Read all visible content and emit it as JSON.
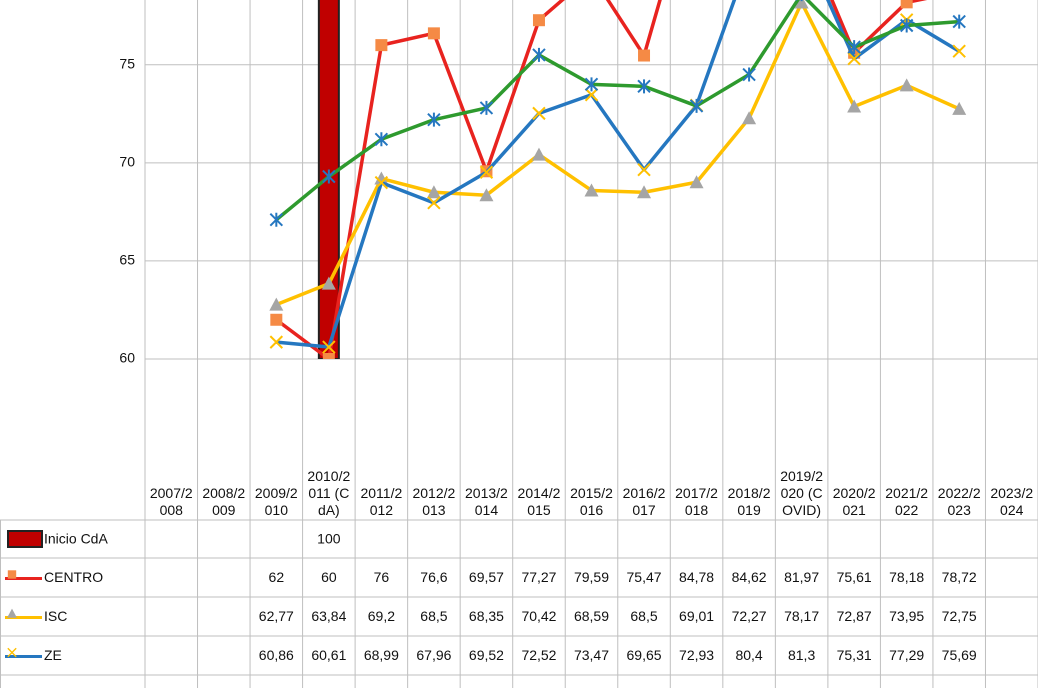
{
  "chart_data": {
    "type": "line",
    "categories": [
      "2007/2008",
      "2008/2009",
      "2009/2010",
      "2010/2011 (CdA)",
      "2011/2012",
      "2012/2013",
      "2013/2014",
      "2014/2015",
      "2015/2016",
      "2016/2017",
      "2017/2018",
      "2018/2019",
      "2019/2020 (COVID)",
      "2020/2021",
      "2021/2022",
      "2022/2023",
      "2023/2024"
    ],
    "ylim": [
      60,
      78.3
    ],
    "yticks": [
      60,
      65,
      70,
      75
    ],
    "grid": true,
    "series": [
      {
        "name": "Inicio CdA",
        "type": "bar",
        "color": "#c00000",
        "values": [
          null,
          null,
          null,
          100,
          null,
          null,
          null,
          null,
          null,
          null,
          null,
          null,
          null,
          null,
          null,
          null,
          null
        ],
        "value_labels": [
          null,
          null,
          null,
          "100",
          null,
          null,
          null,
          null,
          null,
          null,
          null,
          null,
          null,
          null,
          null,
          null,
          null
        ]
      },
      {
        "name": "CENTRO",
        "color": "#e8231f",
        "marker": "square",
        "marker_color": "#f58a45",
        "values": [
          null,
          null,
          62,
          60,
          76,
          76.6,
          69.57,
          77.27,
          79.59,
          75.47,
          84.78,
          84.62,
          81.97,
          75.61,
          78.18,
          78.72,
          null
        ],
        "value_labels": [
          null,
          null,
          "62",
          "60",
          "76",
          "76,6",
          "69,57",
          "77,27",
          "79,59",
          "75,47",
          "84,78",
          "84,62",
          "81,97",
          "75,61",
          "78,18",
          "78,72",
          null
        ]
      },
      {
        "name": "ISC",
        "color": "#ffc000",
        "marker": "triangle",
        "marker_color": "#a5a5a5",
        "values": [
          null,
          null,
          62.77,
          63.84,
          69.2,
          68.5,
          68.35,
          70.42,
          68.59,
          68.5,
          69.01,
          72.27,
          78.17,
          72.87,
          73.95,
          72.75,
          null
        ],
        "value_labels": [
          null,
          null,
          "62,77",
          "63,84",
          "69,2",
          "68,5",
          "68,35",
          "70,42",
          "68,59",
          "68,5",
          "69,01",
          "72,27",
          "78,17",
          "72,87",
          "73,95",
          "72,75",
          null
        ]
      },
      {
        "name": "ZE",
        "color": "#2577c0",
        "marker": "x",
        "marker_color": "#ffc000",
        "values": [
          null,
          null,
          60.86,
          60.61,
          68.99,
          67.96,
          69.52,
          72.52,
          73.47,
          69.65,
          72.93,
          80.4,
          81.3,
          75.31,
          77.29,
          75.69,
          null
        ],
        "value_labels": [
          null,
          null,
          "60,86",
          "60,61",
          "68,99",
          "67,96",
          "69,52",
          "72,52",
          "73,47",
          "69,65",
          "72,93",
          "80,4",
          "81,3",
          "75,31",
          "77,29",
          "75,69",
          null
        ]
      },
      {
        "color": "#2e9a2e",
        "marker": "asterisk",
        "marker_color": "#2577c0",
        "values": [
          null,
          null,
          67.1,
          69.3,
          71.2,
          72.2,
          72.8,
          75.5,
          74,
          73.9,
          72.9,
          74.5,
          78.6,
          75.9,
          77,
          77.2,
          null
        ]
      }
    ]
  }
}
